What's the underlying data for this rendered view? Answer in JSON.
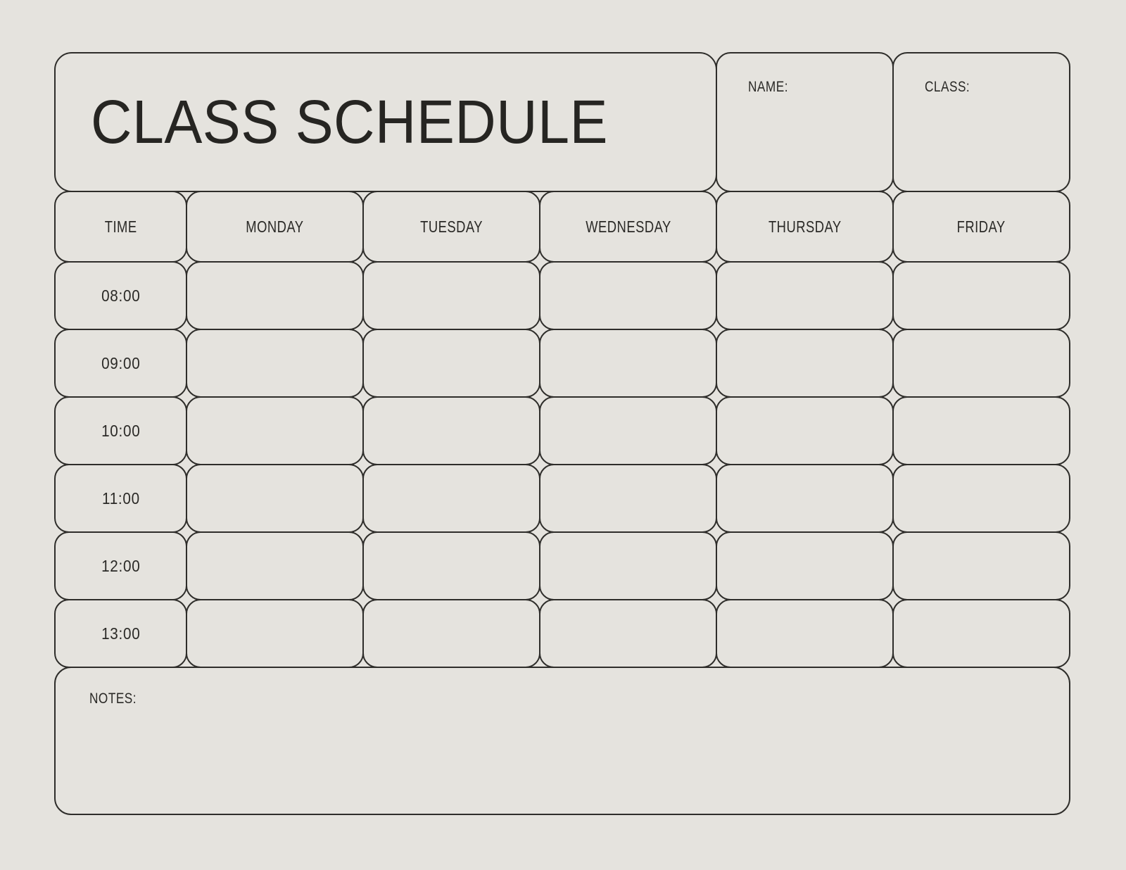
{
  "colors": {
    "background": "#e5e3de",
    "border": "#2e2d2a",
    "text": "#262522"
  },
  "header": {
    "title": "CLASS SCHEDULE"
  },
  "info_boxes": {
    "name_label": "NAME:",
    "name_value": "",
    "class_label": "CLASS:",
    "class_value": ""
  },
  "table": {
    "columns": [
      "TIME",
      "MONDAY",
      "TUESDAY",
      "WEDNESDAY",
      "THURSDAY",
      "FRIDAY"
    ],
    "times": [
      "08:00",
      "09:00",
      "10:00",
      "11:00",
      "12:00",
      "13:00"
    ]
  },
  "notes": {
    "label": "NOTES:",
    "value": ""
  }
}
